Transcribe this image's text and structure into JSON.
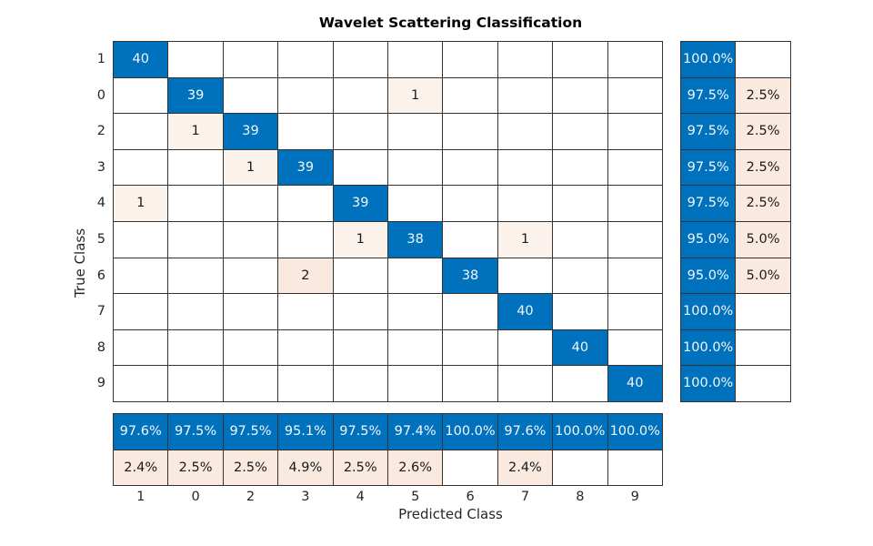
{
  "chart_data": {
    "type": "heatmap",
    "subtype": "confusion-matrix",
    "title": "Wavelet Scattering Classification",
    "xlabel": "Predicted Class",
    "ylabel": "True Class",
    "classes": [
      "1",
      "0",
      "2",
      "3",
      "4",
      "5",
      "6",
      "7",
      "8",
      "9"
    ],
    "matrix": [
      [
        40,
        null,
        null,
        null,
        null,
        null,
        null,
        null,
        null,
        null
      ],
      [
        null,
        39,
        null,
        null,
        null,
        1,
        null,
        null,
        null,
        null
      ],
      [
        null,
        1,
        39,
        null,
        null,
        null,
        null,
        null,
        null,
        null
      ],
      [
        null,
        null,
        1,
        39,
        null,
        null,
        null,
        null,
        null,
        null
      ],
      [
        1,
        null,
        null,
        null,
        39,
        null,
        null,
        null,
        null,
        null
      ],
      [
        null,
        null,
        null,
        null,
        1,
        38,
        null,
        1,
        null,
        null
      ],
      [
        null,
        null,
        null,
        2,
        null,
        null,
        38,
        null,
        null,
        null
      ],
      [
        null,
        null,
        null,
        null,
        null,
        null,
        null,
        40,
        null,
        null
      ],
      [
        null,
        null,
        null,
        null,
        null,
        null,
        null,
        null,
        40,
        null
      ],
      [
        null,
        null,
        null,
        null,
        null,
        null,
        null,
        null,
        null,
        40
      ]
    ],
    "row_summary": {
      "percent_correct": [
        "100.0%",
        "97.5%",
        "97.5%",
        "97.5%",
        "97.5%",
        "95.0%",
        "95.0%",
        "100.0%",
        "100.0%",
        "100.0%"
      ],
      "percent_incorrect": [
        "",
        "2.5%",
        "2.5%",
        "2.5%",
        "2.5%",
        "5.0%",
        "5.0%",
        "",
        "",
        ""
      ]
    },
    "col_summary": {
      "percent_correct": [
        "97.6%",
        "97.5%",
        "97.5%",
        "95.1%",
        "97.5%",
        "97.4%",
        "100.0%",
        "97.6%",
        "100.0%",
        "100.0%"
      ],
      "percent_incorrect": [
        "2.4%",
        "2.5%",
        "2.5%",
        "4.9%",
        "2.5%",
        "2.6%",
        "",
        "2.4%",
        "",
        ""
      ]
    },
    "layout": {
      "grid": "on",
      "row_summary_position": "right",
      "col_summary_position": "bottom"
    },
    "colors": {
      "diagonal_blue": "#0072bd",
      "off_diagonal_tint_light": "#fcf2ec",
      "off_diagonal_tint_strong": "#f9e9df",
      "empty_cell": "#ffffff",
      "grid_line": "#333333",
      "text_on_blue": "#f2f7fb",
      "text_dark": "#1a1a1a",
      "axis_text": "#262626",
      "background": "#ffffff"
    }
  }
}
